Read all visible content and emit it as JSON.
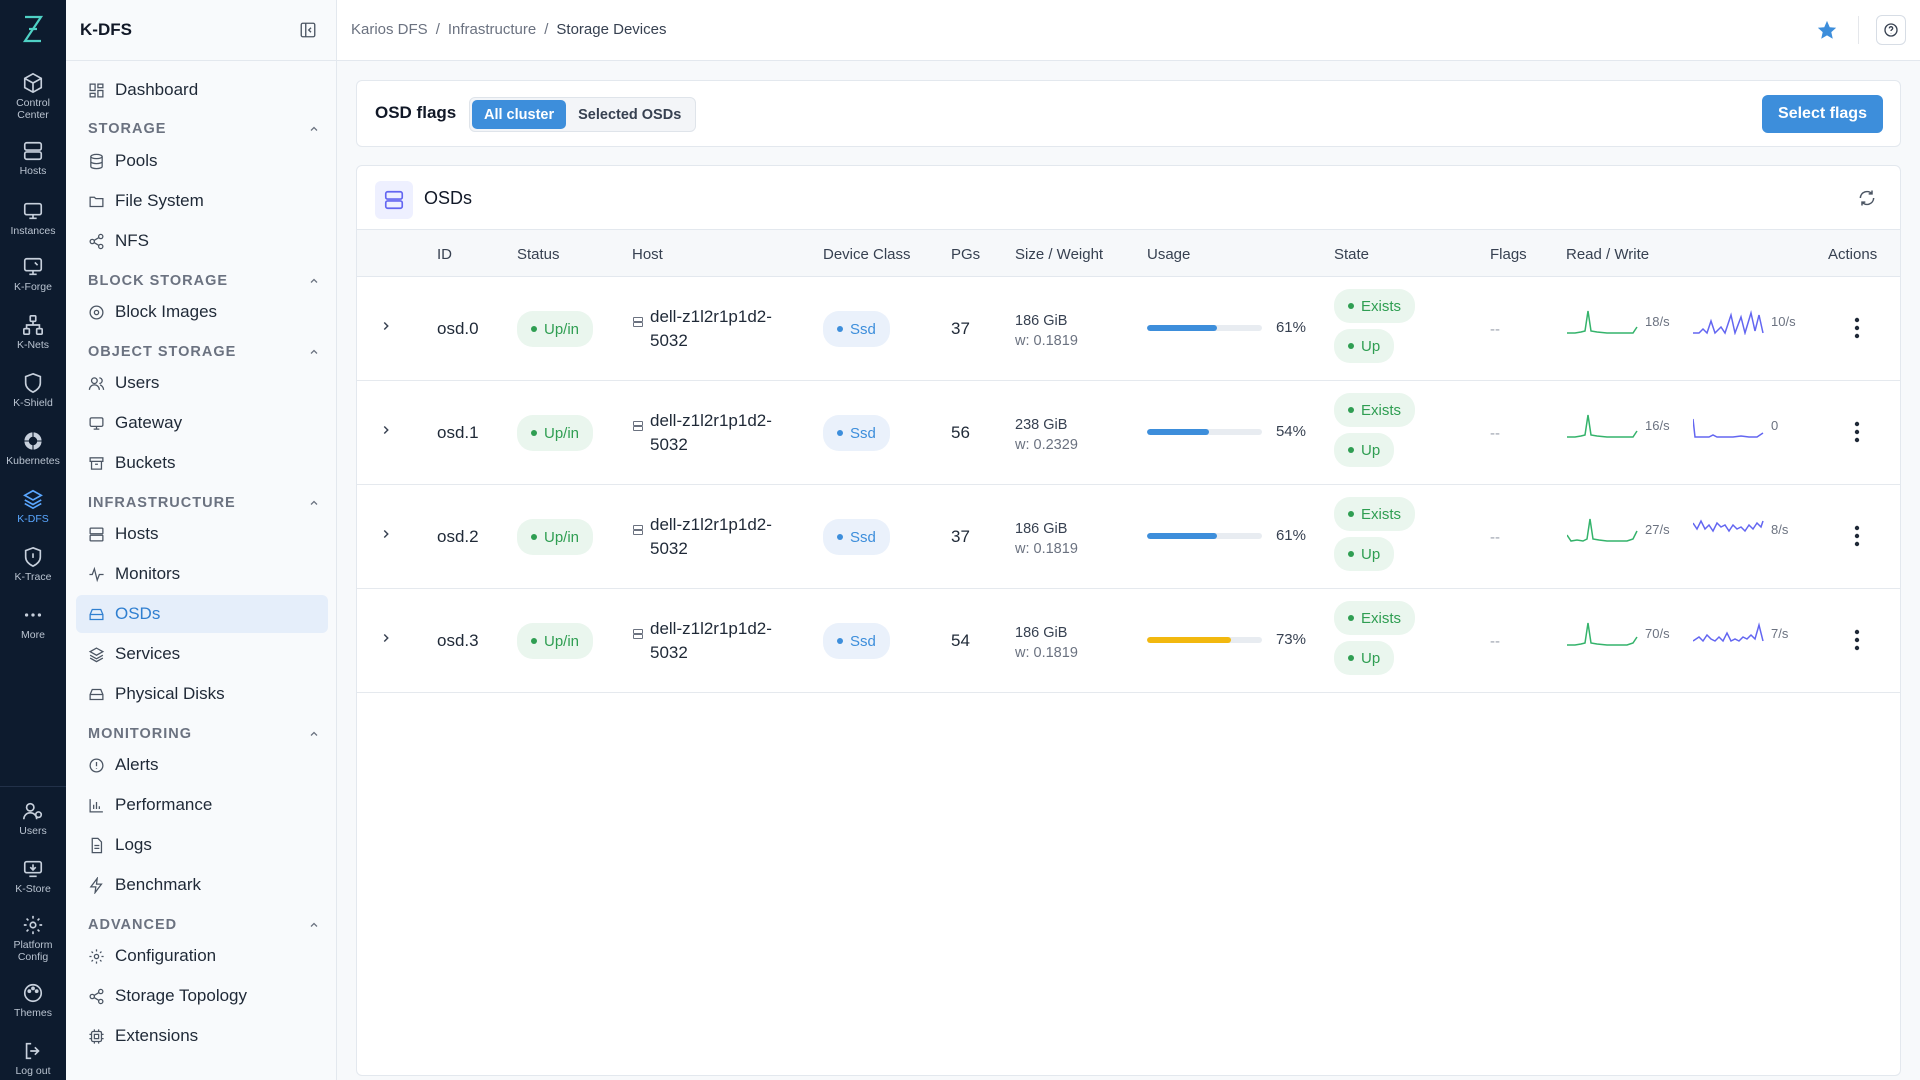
{
  "rail": {
    "items": [
      {
        "label": "Control\nCenter",
        "l1": "Control",
        "l2": "Center"
      },
      {
        "l1": "Hosts"
      },
      {
        "l1": "Instances"
      },
      {
        "l1": "K-Forge"
      },
      {
        "l1": "K-Nets"
      },
      {
        "l1": "K-Shield"
      },
      {
        "l1": "Kubernetes"
      },
      {
        "l1": "K-DFS"
      },
      {
        "l1": "K-Trace"
      },
      {
        "l1": "More"
      },
      {
        "l1": "Users"
      },
      {
        "l1": "K-Store"
      },
      {
        "l1": "Platform",
        "l2": "Config"
      },
      {
        "l1": "Themes"
      },
      {
        "l1": "Log out"
      }
    ]
  },
  "sidebar": {
    "title": "K-DFS",
    "dashboard": "Dashboard",
    "sections": {
      "storage": "STORAGE",
      "block": "BLOCK STORAGE",
      "object": "OBJECT STORAGE",
      "infra": "INFRASTRUCTURE",
      "monitoring": "MONITORING",
      "advanced": "ADVANCED"
    },
    "items": {
      "pools": "Pools",
      "filesystem": "File System",
      "nfs": "NFS",
      "block_images": "Block Images",
      "users": "Users",
      "gateway": "Gateway",
      "buckets": "Buckets",
      "hosts": "Hosts",
      "monitors": "Monitors",
      "osds": "OSDs",
      "services": "Services",
      "physical_disks": "Physical Disks",
      "alerts": "Alerts",
      "performance": "Performance",
      "logs": "Logs",
      "benchmark": "Benchmark",
      "configuration": "Configuration",
      "storage_topology": "Storage Topology",
      "extensions": "Extensions"
    }
  },
  "breadcrumb": {
    "root": "Karios DFS",
    "sep": "/",
    "mid": "Infrastructure",
    "current": "Storage Devices"
  },
  "flags": {
    "title": "OSD flags",
    "seg_all": "All cluster",
    "seg_selected": "Selected OSDs",
    "button": "Select flags"
  },
  "osds": {
    "title": "OSDs",
    "columns": [
      "ID",
      "Status",
      "Host",
      "Device Class",
      "PGs",
      "Size / Weight",
      "Usage",
      "State",
      "Flags",
      "Read / Write",
      "Actions"
    ],
    "rows": [
      {
        "id": "osd.0",
        "status": "Up/in",
        "host1": "dell-z1l2r1p1d2-",
        "host2": "5032",
        "class": "Ssd",
        "pgs": "37",
        "size": "186 GiB",
        "weight": "w: 0.1819",
        "usage_pct": "61%",
        "usage": 0.61,
        "usage_color": "#3d8edb",
        "state1": "Exists",
        "state2": "Up",
        "flags": "--",
        "read": "18/s",
        "write": "10/s"
      },
      {
        "id": "osd.1",
        "status": "Up/in",
        "host1": "dell-z1l2r1p1d2-",
        "host2": "5032",
        "class": "Ssd",
        "pgs": "56",
        "size": "238 GiB",
        "weight": "w: 0.2329",
        "usage_pct": "54%",
        "usage": 0.54,
        "usage_color": "#3d8edb",
        "state1": "Exists",
        "state2": "Up",
        "flags": "--",
        "read": "16/s",
        "write": "0"
      },
      {
        "id": "osd.2",
        "status": "Up/in",
        "host1": "dell-z1l2r1p1d2-",
        "host2": "5032",
        "class": "Ssd",
        "pgs": "37",
        "size": "186 GiB",
        "weight": "w: 0.1819",
        "usage_pct": "61%",
        "usage": 0.61,
        "usage_color": "#3d8edb",
        "state1": "Exists",
        "state2": "Up",
        "flags": "--",
        "read": "27/s",
        "write": "8/s"
      },
      {
        "id": "osd.3",
        "status": "Up/in",
        "host1": "dell-z1l2r1p1d2-",
        "host2": "5032",
        "class": "Ssd",
        "pgs": "54",
        "size": "186 GiB",
        "weight": "w: 0.1819",
        "usage_pct": "73%",
        "usage": 0.73,
        "usage_color": "#f2b80f",
        "state1": "Exists",
        "state2": "Up",
        "flags": "--",
        "read": "70/s",
        "write": "7/s"
      }
    ]
  }
}
